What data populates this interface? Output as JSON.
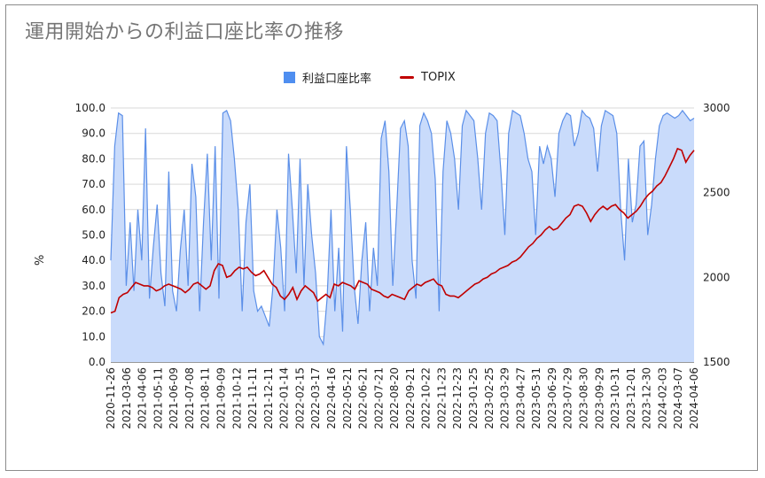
{
  "title": "運用開始からの利益口座比率の推移",
  "legend": {
    "series1": "利益口座比率",
    "series2": "TOPIX"
  },
  "chart_data": {
    "type": "area+line",
    "title": "運用開始からの利益口座比率の推移",
    "ylabel": "%",
    "ylim_left": [
      0,
      100
    ],
    "ylim_right": [
      1500,
      3000
    ],
    "yticks_left": [
      "100.0",
      "90.0",
      "80.0",
      "70.0",
      "60.0",
      "50.0",
      "40.0",
      "30.0",
      "20.0",
      "10.0",
      "0.0"
    ],
    "yticks_right": [
      "3000",
      "2500",
      "2000",
      "1500"
    ],
    "x_ticks": [
      "2020-11-26",
      "2021-03-06",
      "2021-04-06",
      "2021-05-11",
      "2021-06-09",
      "2021-07-08",
      "2021-08-11",
      "2021-09-09",
      "2021-10-12",
      "2021-11-11",
      "2021-12-11",
      "2022-01-14",
      "2022-02-15",
      "2022-03-17",
      "2022-04-16",
      "2022-05-21",
      "2022-06-21",
      "2022-07-21",
      "2022-08-20",
      "2022-09-21",
      "2022-10-22",
      "2022-11-23",
      "2022-12-23",
      "2023-01-25",
      "2023-02-25",
      "2023-03-29",
      "2023-04-27",
      "2023-05-31",
      "2023-06-29",
      "2023-07-29",
      "2023-08-30",
      "2023-09-29",
      "2023-10-31",
      "2023-12-01",
      "2023-12-30",
      "2024-02-03",
      "2024-03-07",
      "2024-04-06"
    ],
    "colors": {
      "ratio_fill": "#c9dbfb",
      "ratio_line": "#5b8fe8",
      "topix": "#c00000"
    },
    "series": [
      {
        "name": "利益口座比率",
        "axis": "left",
        "values": [
          40,
          85,
          98,
          97,
          30,
          55,
          28,
          60,
          40,
          92,
          25,
          45,
          62,
          35,
          22,
          75,
          28,
          20,
          44,
          60,
          30,
          78,
          65,
          20,
          55,
          82,
          40,
          85,
          25,
          98,
          99,
          95,
          80,
          60,
          20,
          55,
          70,
          28,
          20,
          22,
          18,
          14,
          30,
          60,
          45,
          20,
          82,
          60,
          35,
          80,
          30,
          70,
          50,
          35,
          10,
          7,
          25,
          60,
          20,
          45,
          12,
          85,
          60,
          30,
          15,
          40,
          55,
          20,
          45,
          30,
          88,
          95,
          75,
          30,
          60,
          92,
          95,
          85,
          40,
          25,
          93,
          98,
          95,
          90,
          72,
          20,
          75,
          95,
          90,
          80,
          60,
          93,
          99,
          97,
          95,
          80,
          60,
          90,
          98,
          97,
          95,
          75,
          50,
          90,
          99,
          98,
          97,
          90,
          80,
          75,
          50,
          85,
          78,
          85,
          80,
          65,
          90,
          95,
          98,
          97,
          85,
          90,
          99,
          97,
          96,
          92,
          75,
          93,
          99,
          98,
          97,
          90,
          60,
          40,
          80,
          55,
          62,
          85,
          87,
          50,
          62,
          80,
          93,
          97,
          98,
          97,
          96,
          97,
          99,
          97,
          95,
          96
        ]
      },
      {
        "name": "TOPIX",
        "axis": "right",
        "values": [
          1790,
          1800,
          1880,
          1900,
          1910,
          1940,
          1970,
          1960,
          1950,
          1950,
          1940,
          1920,
          1930,
          1950,
          1960,
          1950,
          1940,
          1930,
          1910,
          1930,
          1960,
          1970,
          1950,
          1930,
          1950,
          2040,
          2080,
          2070,
          2000,
          2010,
          2040,
          2060,
          2050,
          2060,
          2030,
          2010,
          2020,
          2040,
          2000,
          1960,
          1940,
          1890,
          1870,
          1900,
          1940,
          1870,
          1920,
          1950,
          1930,
          1910,
          1860,
          1880,
          1900,
          1880,
          1960,
          1950,
          1970,
          1960,
          1950,
          1930,
          1980,
          1970,
          1960,
          1930,
          1920,
          1910,
          1890,
          1880,
          1900,
          1890,
          1880,
          1870,
          1920,
          1940,
          1960,
          1950,
          1970,
          1980,
          1990,
          1960,
          1950,
          1900,
          1890,
          1890,
          1880,
          1900,
          1920,
          1940,
          1960,
          1970,
          1990,
          2000,
          2020,
          2030,
          2050,
          2060,
          2070,
          2090,
          2100,
          2120,
          2150,
          2180,
          2200,
          2230,
          2250,
          2280,
          2300,
          2280,
          2290,
          2320,
          2350,
          2370,
          2420,
          2430,
          2420,
          2380,
          2330,
          2370,
          2400,
          2420,
          2400,
          2420,
          2430,
          2400,
          2380,
          2350,
          2370,
          2390,
          2420,
          2460,
          2490,
          2510,
          2540,
          2560,
          2600,
          2650,
          2700,
          2760,
          2750,
          2680,
          2720,
          2750
        ]
      }
    ]
  }
}
